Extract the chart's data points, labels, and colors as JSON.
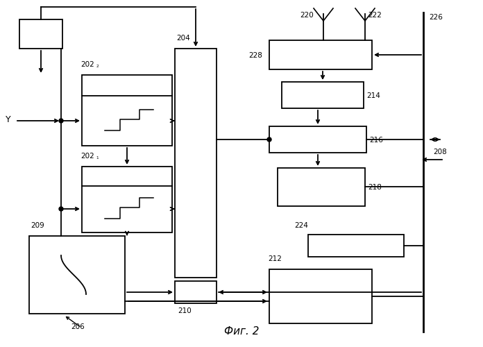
{
  "bg_color": "#ffffff",
  "line_color": "#000000",
  "fig_caption": "Фиг. 2"
}
